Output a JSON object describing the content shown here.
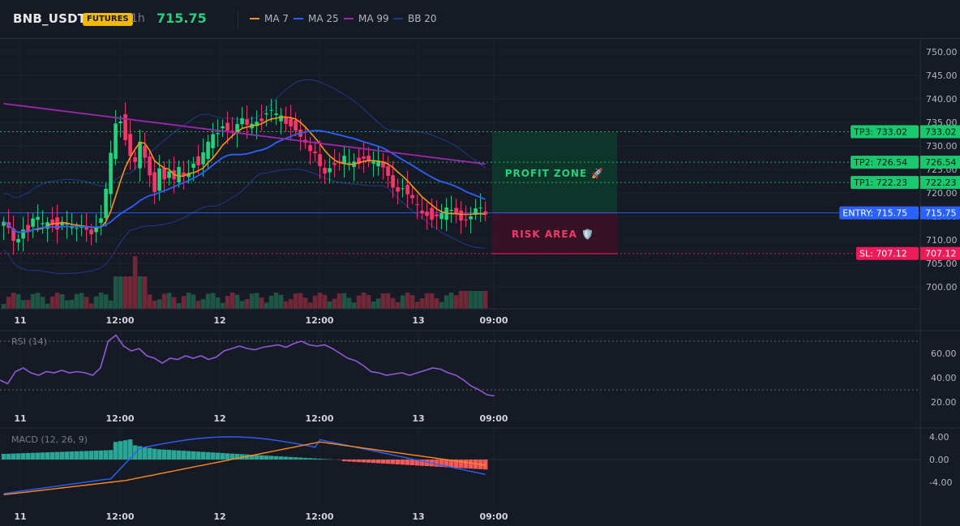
{
  "header": {
    "symbol": "BNB_USDT",
    "badge": "FUTURES",
    "timeframe": "1h",
    "price": "715.75",
    "indicators": [
      {
        "label": "MA 7",
        "color": "#f7931a"
      },
      {
        "label": "MA 25",
        "color": "#2962ff"
      },
      {
        "label": "MA 99",
        "color": "#9c27b0"
      },
      {
        "label": "BB 20",
        "color": "#1e3a8a"
      }
    ]
  },
  "colors": {
    "background": "#161a25",
    "up": "#26d07c",
    "down": "#f23a6a",
    "grid": "#1f2330",
    "tp": "#18c96e",
    "entry": "#2962ff",
    "sl": "#f0195a",
    "rsi": "#8e5ad8",
    "macd": "#2962ff",
    "signal": "#ff8a1f"
  },
  "price_axis": {
    "ticks": [
      "750.00",
      "745.00",
      "740.00",
      "735.00",
      "730.00",
      "725.00",
      "720.00",
      "715.00",
      "710.00",
      "705.00",
      "700.00"
    ]
  },
  "time_axis": {
    "labels": [
      "11",
      "12:00",
      "12",
      "12:00",
      "13",
      "09:00"
    ]
  },
  "levels": [
    {
      "label": "TP3: 733.02",
      "value": "733.02",
      "kind": "tp"
    },
    {
      "label": "TP2: 726.54",
      "value": "726.54",
      "kind": "tp"
    },
    {
      "label": "TP1: 722.23",
      "value": "722.23",
      "kind": "tp"
    },
    {
      "label": "ENTRY: 715.75",
      "value": "715.75",
      "kind": "entry"
    },
    {
      "label": "SL: 707.12",
      "value": "707.12",
      "kind": "sl"
    }
  ],
  "zones": {
    "profit": "PROFIT ZONE 🚀",
    "risk": "RISK AREA 🛡️"
  },
  "rsi": {
    "label": "RSI (14)",
    "ticks": [
      "60.00",
      "40.00",
      "20.00"
    ]
  },
  "macd": {
    "label": "MACD (12, 26, 9)",
    "ticks": [
      "4.00",
      "0.00",
      "-4.00"
    ]
  }
}
